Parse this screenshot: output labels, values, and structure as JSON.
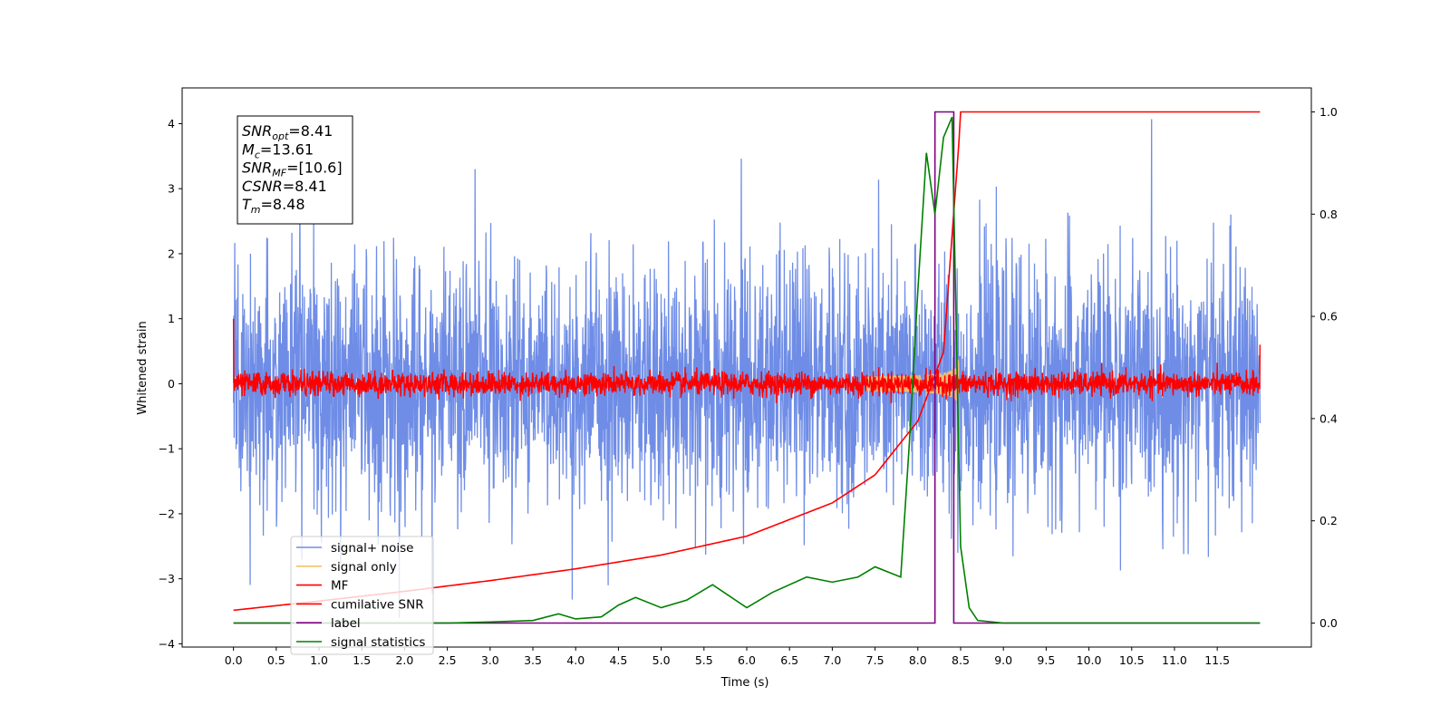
{
  "chart_data": {
    "type": "line",
    "xlabel": "Time (s)",
    "ylabel": "Whitened strain",
    "xlim": [
      -0.6,
      12.6
    ],
    "ylim": [
      -4.05,
      4.55
    ],
    "y2lim": [
      -0.047,
      1.047
    ],
    "grid": false,
    "legend_placement": "lower-left",
    "x_ticks": [
      "0.0",
      "0.5",
      "1.0",
      "1.5",
      "2.0",
      "2.5",
      "3.0",
      "3.5",
      "4.0",
      "4.5",
      "5.0",
      "5.5",
      "6.0",
      "6.5",
      "7.0",
      "7.5",
      "8.0",
      "8.5",
      "9.0",
      "9.5",
      "10.0",
      "10.5",
      "11.0",
      "11.5"
    ],
    "y_ticks": [
      "4",
      "3",
      "2",
      "1",
      "0",
      "−1",
      "−2",
      "−3",
      "−4"
    ],
    "y2_ticks": [
      "1.0",
      "0.8",
      "0.6",
      "0.4",
      "0.2",
      "0.0"
    ],
    "annotation": {
      "lines": [
        {
          "sym": "SNR",
          "sub": "opt",
          "text": "=8.41"
        },
        {
          "sym": "M",
          "sub": "c",
          "text": "=13.61"
        },
        {
          "sym": "SNR",
          "sub": "MF",
          "text": "=[10.6]"
        },
        {
          "sym": "CSNR",
          "sub": "",
          "text": "=8.41"
        },
        {
          "sym": "T",
          "sub": "m",
          "text": "=8.48"
        }
      ]
    },
    "legend": [
      {
        "label": "signal+ noise",
        "color": "#6f8de6"
      },
      {
        "label": "signal only",
        "color": "#f5c16c"
      },
      {
        "label": "MF",
        "color": "#ff0000"
      },
      {
        "label": "cumilative SNR",
        "color": "#ff0000"
      },
      {
        "label": "label",
        "color": "#800080"
      },
      {
        "label": "signal statistics",
        "color": "#008000"
      }
    ],
    "series": [
      {
        "name": "signal+ noise",
        "axis": "left",
        "color": "#6f8de6",
        "t_start": 0.0,
        "t_end": 12.0,
        "std": 0.95,
        "approx_range": [
          -3.6,
          4.17
        ]
      },
      {
        "name": "signal only",
        "axis": "left",
        "color": "#f5c16c",
        "chirp_end": 8.48,
        "peak_amplitude": 0.6
      },
      {
        "name": "MF",
        "axis": "left",
        "color": "#ff0000",
        "t_start": 0.0,
        "t_end": 12.0,
        "std": 0.09
      },
      {
        "name": "cumilative SNR",
        "axis": "right",
        "color": "#ff0000",
        "x": [
          0.0,
          1.0,
          2.0,
          3.0,
          4.0,
          5.0,
          6.0,
          7.0,
          7.5,
          8.0,
          8.3,
          8.48,
          8.5,
          12.0
        ],
        "values": [
          0.025,
          0.043,
          0.062,
          0.083,
          0.106,
          0.133,
          0.17,
          0.235,
          0.29,
          0.395,
          0.53,
          0.94,
          1.0,
          1.0
        ]
      },
      {
        "name": "label",
        "axis": "right",
        "color": "#800080",
        "x": [
          0.0,
          8.2,
          8.2,
          8.42,
          8.42,
          12.0
        ],
        "values": [
          0.0,
          0.0,
          1.0,
          1.0,
          0.0,
          0.0
        ]
      },
      {
        "name": "signal statistics",
        "axis": "right",
        "color": "#008000",
        "x": [
          0.0,
          0.5,
          1.0,
          1.5,
          2.0,
          2.5,
          3.0,
          3.5,
          3.8,
          4.0,
          4.3,
          4.5,
          4.7,
          5.0,
          5.3,
          5.6,
          6.0,
          6.3,
          6.7,
          7.0,
          7.3,
          7.5,
          7.8,
          7.9,
          8.0,
          8.1,
          8.2,
          8.3,
          8.4,
          8.5,
          8.6,
          8.7,
          9.0,
          9.5,
          12.0
        ],
        "values": [
          0.0,
          0.0,
          0.0,
          0.0,
          0.0,
          0.0,
          0.002,
          0.005,
          0.018,
          0.008,
          0.012,
          0.035,
          0.05,
          0.03,
          0.045,
          0.075,
          0.03,
          0.06,
          0.09,
          0.08,
          0.09,
          0.11,
          0.09,
          0.35,
          0.65,
          0.92,
          0.8,
          0.95,
          0.99,
          0.15,
          0.03,
          0.005,
          0.0,
          0.0,
          0.0
        ]
      }
    ]
  }
}
